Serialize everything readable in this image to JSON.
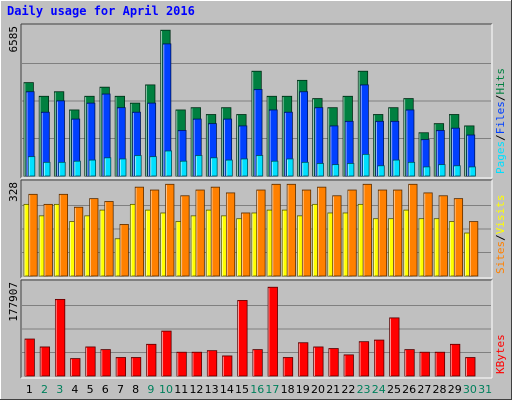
{
  "title": "Daily usage for April 2016",
  "days": [
    "1",
    "2",
    "3",
    "4",
    "5",
    "6",
    "7",
    "8",
    "9",
    "10",
    "11",
    "12",
    "13",
    "14",
    "15",
    "16",
    "17",
    "18",
    "19",
    "20",
    "21",
    "22",
    "23",
    "24",
    "25",
    "26",
    "27",
    "28",
    "29",
    "30",
    "31"
  ],
  "weekend_days": [
    "2",
    "3",
    "9",
    "10",
    "16",
    "17",
    "23",
    "24",
    "30",
    "31"
  ],
  "colors": {
    "hits": "#008040",
    "files": "#0040ff",
    "pages": "#00e0ff",
    "visits": "#ffff00",
    "sites": "#ff8000",
    "kbytes": "#ff0000",
    "title": "#0000ff",
    "weekday_label": "#000000",
    "weekend_label": "#00805c",
    "plot_bg": "#c0c0c0",
    "grid": "#808080"
  },
  "chart_data": [
    {
      "type": "bar",
      "name": "hits-files-pages",
      "ymax_label": "6585",
      "ylim": [
        0,
        6585
      ],
      "axis_label": [
        "Pages",
        "/",
        "Files",
        "/",
        "Hits"
      ],
      "categories": [
        "1",
        "2",
        "3",
        "4",
        "5",
        "6",
        "7",
        "8",
        "9",
        "10",
        "11",
        "12",
        "13",
        "14",
        "15",
        "16",
        "17",
        "18",
        "19",
        "20",
        "21",
        "22",
        "23",
        "24",
        "25",
        "26",
        "27",
        "28",
        "29",
        "30"
      ],
      "series": [
        {
          "name": "Hits",
          "values": [
            4100,
            3500,
            3700,
            2900,
            3500,
            3900,
            3500,
            3200,
            4000,
            6400,
            2900,
            3000,
            2700,
            3000,
            2700,
            4600,
            3500,
            3500,
            4200,
            3400,
            3000,
            3500,
            4600,
            2700,
            3000,
            3400,
            1900,
            2300,
            2700,
            2200
          ]
        },
        {
          "name": "Files",
          "values": [
            3700,
            2800,
            3300,
            2500,
            3200,
            3600,
            3000,
            2800,
            3200,
            5800,
            2000,
            2500,
            2300,
            2500,
            2200,
            3800,
            2900,
            2800,
            3700,
            3000,
            2200,
            2400,
            4000,
            2400,
            2400,
            2900,
            1600,
            2000,
            2100,
            1800
          ]
        },
        {
          "name": "Pages",
          "values": [
            850,
            600,
            600,
            650,
            700,
            800,
            750,
            900,
            850,
            1100,
            650,
            900,
            800,
            700,
            750,
            900,
            650,
            750,
            600,
            550,
            500,
            550,
            950,
            450,
            700,
            600,
            400,
            500,
            450,
            400
          ]
        }
      ]
    },
    {
      "type": "bar",
      "name": "visits-sites",
      "ymax_label": "328",
      "ylim": [
        0,
        328
      ],
      "axis_label": [
        "Sites",
        "/",
        "Visits"
      ],
      "categories": [
        "1",
        "2",
        "3",
        "4",
        "5",
        "6",
        "7",
        "8",
        "9",
        "10",
        "11",
        "12",
        "13",
        "14",
        "15",
        "16",
        "17",
        "18",
        "19",
        "20",
        "21",
        "22",
        "23",
        "24",
        "25",
        "26",
        "27",
        "28",
        "29",
        "30"
      ],
      "series": [
        {
          "name": "Visits",
          "values": [
            250,
            210,
            250,
            190,
            210,
            230,
            130,
            250,
            230,
            220,
            190,
            210,
            230,
            210,
            200,
            220,
            230,
            230,
            210,
            250,
            220,
            220,
            250,
            200,
            200,
            230,
            200,
            200,
            190,
            150
          ]
        },
        {
          "name": "Sites",
          "values": [
            285,
            250,
            285,
            240,
            270,
            260,
            180,
            310,
            300,
            320,
            280,
            300,
            310,
            290,
            220,
            300,
            320,
            320,
            300,
            310,
            280,
            300,
            320,
            300,
            300,
            320,
            290,
            280,
            270,
            190
          ]
        }
      ]
    },
    {
      "type": "bar",
      "name": "kbytes",
      "ymax_label": "177907",
      "ylim": [
        0,
        177907
      ],
      "axis_label": [
        "KBytes"
      ],
      "categories": [
        "1",
        "2",
        "3",
        "4",
        "5",
        "6",
        "7",
        "8",
        "9",
        "10",
        "11",
        "12",
        "13",
        "14",
        "15",
        "16",
        "17",
        "18",
        "19",
        "20",
        "21",
        "22",
        "23",
        "24",
        "25",
        "26",
        "27",
        "28",
        "29",
        "30"
      ],
      "series": [
        {
          "name": "KBytes",
          "values": [
            70000,
            55000,
            145000,
            33000,
            55000,
            50000,
            35000,
            35000,
            60000,
            85000,
            45000,
            45000,
            48000,
            38000,
            143000,
            50000,
            168000,
            35000,
            63000,
            55000,
            52000,
            40000,
            65000,
            68000,
            110000,
            50000,
            45000,
            45000,
            60000,
            35000
          ]
        }
      ]
    }
  ]
}
